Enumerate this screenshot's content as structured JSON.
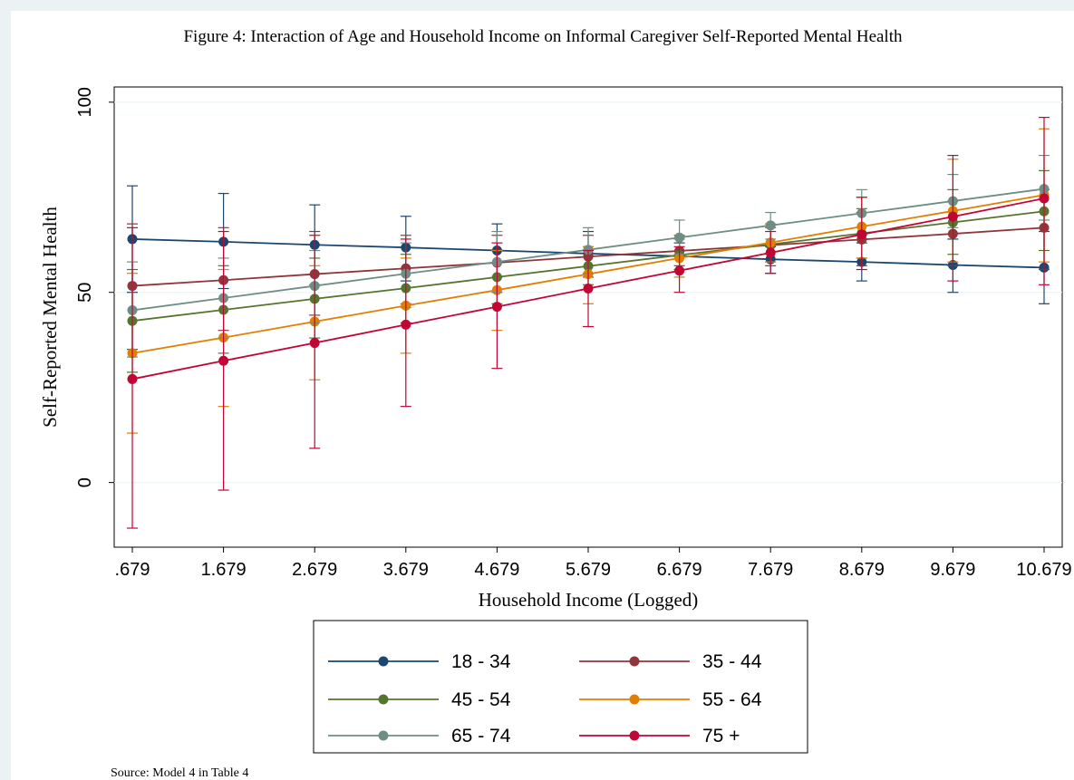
{
  "chart_data": {
    "type": "line",
    "title": "Figure 4: Interaction of Age and Household Income on Informal Caregiver Self-Reported Mental Health",
    "xlabel": "Household Income (Logged)",
    "ylabel": "Self-Reported Mental Health",
    "source": "Source: Model 4 in Table 4",
    "x": [
      0.679,
      1.679,
      2.679,
      3.679,
      4.679,
      5.679,
      6.679,
      7.679,
      8.679,
      9.679,
      10.679
    ],
    "x_tick_labels": [
      ".679",
      "1.679",
      "2.679",
      "3.679",
      "4.679",
      "5.679",
      "6.679",
      "7.679",
      "8.679",
      "9.679",
      "10.679"
    ],
    "y_ticks": [
      0,
      50,
      100
    ],
    "y_tick_labels": [
      "0",
      "50",
      "100"
    ],
    "xlim": [
      0.679,
      10.679
    ],
    "ylim": [
      -17,
      104
    ],
    "grid": true,
    "legend_position": "bottom",
    "series": [
      {
        "name": "18 - 34",
        "color": "#1a476f",
        "values": [
          64.0,
          63.3,
          62.5,
          61.8,
          61.0,
          60.2,
          59.5,
          58.7,
          58.0,
          57.2,
          56.5
        ],
        "ci_low": [
          50,
          51,
          52,
          53,
          54,
          55,
          56,
          55,
          53,
          50,
          47
        ],
        "ci_high": [
          78,
          76,
          73,
          70,
          68,
          66,
          63,
          62,
          63,
          64,
          66
        ]
      },
      {
        "name": "35 - 44",
        "color": "#90353b",
        "values": [
          51.7,
          53.2,
          54.8,
          56.3,
          57.8,
          59.4,
          60.9,
          62.4,
          63.9,
          65.4,
          67.0
        ],
        "ci_low": [
          35,
          40,
          44,
          47,
          50,
          54,
          57,
          57,
          57,
          57,
          56
        ],
        "ci_high": [
          68,
          67,
          66,
          65,
          65,
          65,
          65,
          68,
          71,
          74,
          77
        ]
      },
      {
        "name": "45 - 54",
        "color": "#55752f",
        "values": [
          42.5,
          45.4,
          48.3,
          51.1,
          54.0,
          56.9,
          59.8,
          62.6,
          65.5,
          68.4,
          71.3
        ],
        "ci_low": [
          29,
          34,
          38,
          42,
          47,
          52,
          56,
          58,
          59,
          60,
          61
        ],
        "ci_high": [
          56,
          57,
          59,
          60,
          61,
          62,
          64,
          67,
          72,
          77,
          82
        ]
      },
      {
        "name": "55 - 64",
        "color": "#e37e00",
        "values": [
          34.0,
          38.1,
          42.3,
          46.5,
          50.6,
          54.8,
          59.0,
          63.1,
          67.3,
          71.4,
          75.6
        ],
        "ci_low": [
          13,
          20,
          27,
          34,
          40,
          47,
          54,
          58,
          59,
          58,
          58
        ],
        "ci_high": [
          55,
          56,
          57,
          59,
          61,
          62,
          64,
          68,
          75,
          85,
          93
        ]
      },
      {
        "name": "65 - 74",
        "color": "#6e8e84",
        "values": [
          45.3,
          48.5,
          51.7,
          54.9,
          58.0,
          61.2,
          64.4,
          67.6,
          70.8,
          74.0,
          77.2
        ],
        "ci_low": [
          33,
          38,
          42,
          46,
          50,
          55,
          60,
          64,
          65,
          67,
          69
        ],
        "ci_high": [
          58,
          59,
          61,
          63,
          66,
          67,
          69,
          71,
          77,
          81,
          86
        ]
      },
      {
        "name": "75 +",
        "color": "#c10534",
        "values": [
          27.2,
          32.0,
          36.7,
          41.5,
          46.2,
          51.0,
          55.7,
          60.4,
          65.2,
          69.9,
          74.7
        ],
        "ci_low": [
          -12,
          -2,
          9,
          20,
          30,
          41,
          50,
          55,
          56,
          53,
          52
        ],
        "ci_high": [
          67,
          66,
          65,
          64,
          63,
          61,
          62,
          66,
          75,
          86,
          96
        ]
      }
    ]
  }
}
